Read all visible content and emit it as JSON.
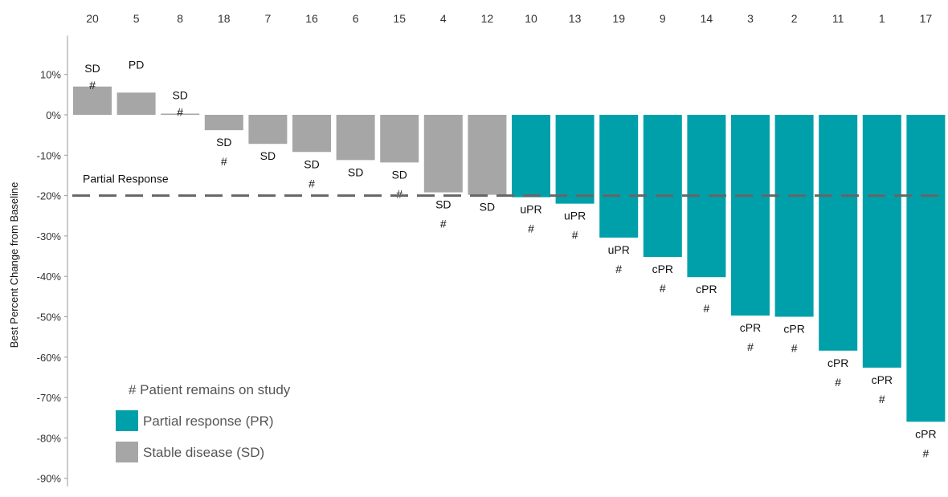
{
  "chart_data": {
    "type": "bar",
    "categories": [
      "20",
      "5",
      "8",
      "18",
      "7",
      "16",
      "6",
      "15",
      "4",
      "12",
      "10",
      "13",
      "19",
      "9",
      "14",
      "3",
      "2",
      "11",
      "1",
      "17"
    ],
    "values": [
      7,
      5.5,
      0.3,
      -3.8,
      -7.2,
      -9.2,
      -11.2,
      -11.8,
      -19.2,
      -19.8,
      -20.4,
      -22,
      -30.4,
      -35.2,
      -40.2,
      -49.7,
      -50,
      -58.4,
      -62.6,
      -76
    ],
    "responses": [
      "SD",
      "PD",
      "SD",
      "SD",
      "SD",
      "SD",
      "SD",
      "SD",
      "SD",
      "SD",
      "uPR",
      "uPR",
      "uPR",
      "cPR",
      "cPR",
      "cPR",
      "cPR",
      "cPR",
      "cPR",
      "cPR"
    ],
    "on_study": [
      true,
      false,
      true,
      true,
      false,
      true,
      false,
      true,
      true,
      false,
      true,
      true,
      true,
      true,
      true,
      true,
      true,
      true,
      true,
      true
    ],
    "bar_group": [
      "SD",
      "SD",
      "SD",
      "SD",
      "SD",
      "SD",
      "SD",
      "SD",
      "SD",
      "SD",
      "PR",
      "PR",
      "PR",
      "PR",
      "PR",
      "PR",
      "PR",
      "PR",
      "PR",
      "PR"
    ],
    "ylabel": "Best Percent Change from Baseline",
    "ylim": [
      -90,
      20
    ],
    "yticks": [
      10,
      0,
      -10,
      -20,
      -30,
      -40,
      -50,
      -60,
      -70,
      -80,
      -90
    ],
    "ytick_labels": [
      "10%",
      "0%",
      "-10%",
      "-20%",
      "-30%",
      "-40%",
      "-50%",
      "-60%",
      "-70%",
      "-80%",
      "-90%"
    ],
    "threshold": {
      "value": -20,
      "label": "Partial Response"
    },
    "legend": {
      "note": "# Patient remains on study",
      "marker": "#",
      "items": [
        {
          "label": "Partial response (PR)",
          "color": "#00a0aa"
        },
        {
          "label": "Stable disease (SD)",
          "color": "#a6a6a6"
        }
      ]
    },
    "colors": {
      "PR": "#00a0aa",
      "SD": "#a6a6a6"
    }
  }
}
